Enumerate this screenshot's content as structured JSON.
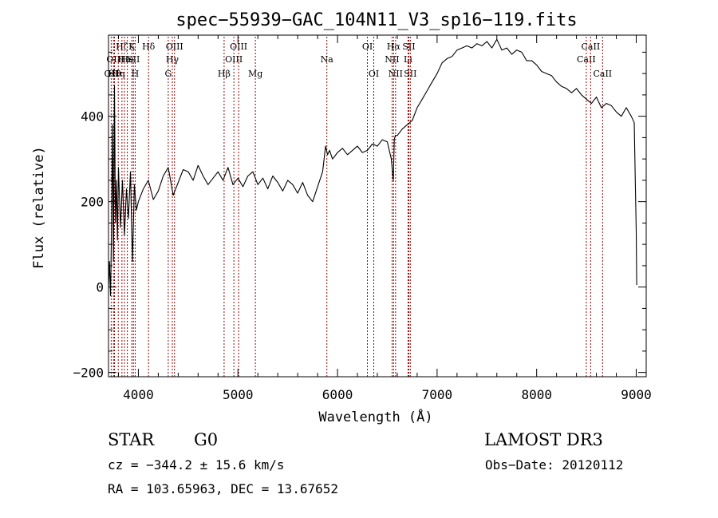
{
  "chart_data": {
    "type": "line",
    "title": "spec−55939−GAC_104N11_V3_sp16−119.fits",
    "xlabel": "Wavelength (Å)",
    "ylabel": "Flux (relative)",
    "xlim": [
      3700,
      9100
    ],
    "ylim": [
      -210,
      590
    ],
    "xticks": [
      {
        "value": 4000,
        "label": "4000"
      },
      {
        "value": 5000,
        "label": "5000"
      },
      {
        "value": 6000,
        "label": "6000"
      },
      {
        "value": 7000,
        "label": "7000"
      },
      {
        "value": 8000,
        "label": "8000"
      },
      {
        "value": 9000,
        "label": "9000"
      }
    ],
    "yticks": [
      {
        "value": -200,
        "label": "−200"
      },
      {
        "value": 0,
        "label": "0"
      },
      {
        "value": 200,
        "label": "200"
      },
      {
        "value": 400,
        "label": "400"
      }
    ],
    "series": [
      {
        "name": "flux",
        "color": "#000000",
        "x": [
          3700,
          3710,
          3720,
          3730,
          3740,
          3750,
          3760,
          3770,
          3780,
          3790,
          3800,
          3820,
          3840,
          3860,
          3880,
          3900,
          3920,
          3940,
          3960,
          3980,
          4000,
          4050,
          4100,
          4150,
          4200,
          4250,
          4300,
          4350,
          4400,
          4450,
          4500,
          4550,
          4600,
          4650,
          4700,
          4750,
          4800,
          4850,
          4900,
          4950,
          5000,
          5050,
          5100,
          5150,
          5200,
          5250,
          5300,
          5350,
          5400,
          5450,
          5500,
          5550,
          5600,
          5650,
          5700,
          5750,
          5800,
          5850,
          5880,
          5900,
          5920,
          5950,
          6000,
          6050,
          6100,
          6150,
          6200,
          6250,
          6300,
          6350,
          6400,
          6450,
          6500,
          6540,
          6560,
          6570,
          6580,
          6600,
          6650,
          6700,
          6750,
          6800,
          6850,
          6900,
          6950,
          7000,
          7050,
          7100,
          7150,
          7200,
          7250,
          7300,
          7350,
          7400,
          7450,
          7500,
          7550,
          7600,
          7650,
          7700,
          7750,
          7800,
          7850,
          7900,
          7950,
          8000,
          8050,
          8100,
          8150,
          8200,
          8250,
          8300,
          8350,
          8400,
          8450,
          8500,
          8550,
          8600,
          8650,
          8700,
          8750,
          8800,
          8850,
          8900,
          8950,
          8980,
          8990,
          9000,
          9005
        ],
        "y": [
          0,
          60,
          -20,
          120,
          380,
          60,
          470,
          150,
          250,
          110,
          280,
          140,
          250,
          120,
          230,
          160,
          270,
          60,
          240,
          180,
          200,
          230,
          250,
          205,
          225,
          260,
          280,
          215,
          245,
          275,
          270,
          250,
          285,
          260,
          240,
          255,
          270,
          250,
          280,
          240,
          255,
          235,
          260,
          270,
          240,
          255,
          230,
          260,
          245,
          225,
          250,
          240,
          220,
          245,
          215,
          200,
          235,
          270,
          330,
          310,
          320,
          300,
          315,
          325,
          310,
          320,
          330,
          315,
          320,
          335,
          330,
          345,
          340,
          300,
          250,
          345,
          355,
          355,
          370,
          380,
          390,
          420,
          440,
          460,
          480,
          500,
          525,
          535,
          540,
          555,
          560,
          565,
          560,
          570,
          565,
          575,
          560,
          580,
          555,
          560,
          545,
          555,
          550,
          530,
          530,
          520,
          505,
          500,
          495,
          480,
          470,
          465,
          455,
          465,
          450,
          440,
          430,
          445,
          420,
          430,
          425,
          410,
          400,
          420,
          400,
          385,
          250,
          130,
          5
        ]
      }
    ],
    "lines": [
      {
        "wavelength": 3727,
        "label": "OII",
        "row": 3
      },
      {
        "wavelength": 3750,
        "label": "OII",
        "row": 2
      },
      {
        "wavelength": 3760,
        "label": "Hθ",
        "row": 3
      },
      {
        "wavelength": 3798,
        "label": "Hη",
        "row": 3
      },
      {
        "wavelength": 3835,
        "label": "Hζ",
        "row": 1
      },
      {
        "wavelength": 3860,
        "label": "He",
        "row": 2
      },
      {
        "wavelength": 3889,
        "label": "He",
        "row": 2
      },
      {
        "wavelength": 3934,
        "label": "K",
        "row": 1
      },
      {
        "wavelength": 3950,
        "label": "SII",
        "row": 2
      },
      {
        "wavelength": 3968,
        "label": "H",
        "row": 3
      },
      {
        "wavelength": 4102,
        "label": "Hδ",
        "row": 1
      },
      {
        "wavelength": 4300,
        "label": "G",
        "row": 3
      },
      {
        "wavelength": 4341,
        "label": "Hγ",
        "row": 2
      },
      {
        "wavelength": 4363,
        "label": "OIII",
        "row": 1
      },
      {
        "wavelength": 4861,
        "label": "Hβ",
        "row": 3
      },
      {
        "wavelength": 4959,
        "label": "OIII",
        "row": 2
      },
      {
        "wavelength": 5007,
        "label": "OIII",
        "row": 1
      },
      {
        "wavelength": 5175,
        "label": "Mg",
        "row": 3
      },
      {
        "wavelength": 5893,
        "label": "Na",
        "row": 2
      },
      {
        "wavelength": 6300,
        "label": "OI",
        "row": 1
      },
      {
        "wavelength": 6364,
        "label": "OI",
        "row": 3
      },
      {
        "wavelength": 6548,
        "label": "NII",
        "row": 2
      },
      {
        "wavelength": 6563,
        "label": "Hα",
        "row": 1
      },
      {
        "wavelength": 6583,
        "label": "NII",
        "row": 3
      },
      {
        "wavelength": 6708,
        "label": "Li",
        "row": 2
      },
      {
        "wavelength": 6716,
        "label": "SII",
        "row": 1
      },
      {
        "wavelength": 6731,
        "label": "SII",
        "row": 3
      },
      {
        "wavelength": 8498,
        "label": "CaII",
        "row": 2
      },
      {
        "wavelength": 8542,
        "label": "CaII",
        "row": 1
      },
      {
        "wavelength": 8662,
        "label": "CaII",
        "row": 3
      }
    ],
    "line_color": "#990000"
  },
  "footer": {
    "object_class": "STAR",
    "subclass": "G0",
    "survey": "LAMOST DR3",
    "redshift": "cz = −344.2 ± 15.6 km/s",
    "obs_date": "Obs−Date: 20120112",
    "coordinates": "RA = 103.65963, DEC =  13.67652"
  }
}
